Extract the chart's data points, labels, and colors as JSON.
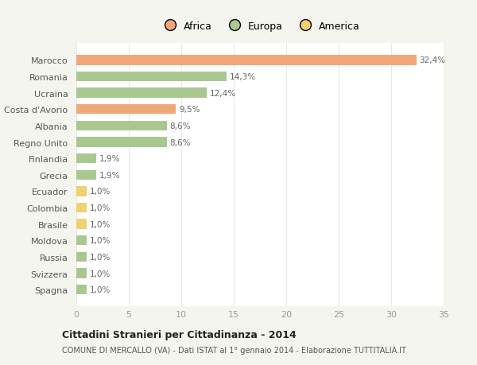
{
  "categories": [
    "Marocco",
    "Romania",
    "Ucraina",
    "Costa d'Avorio",
    "Albania",
    "Regno Unito",
    "Finlandia",
    "Grecia",
    "Ecuador",
    "Colombia",
    "Brasile",
    "Moldova",
    "Russia",
    "Svizzera",
    "Spagna"
  ],
  "values": [
    32.4,
    14.3,
    12.4,
    9.5,
    8.6,
    8.6,
    1.9,
    1.9,
    1.0,
    1.0,
    1.0,
    1.0,
    1.0,
    1.0,
    1.0
  ],
  "labels": [
    "32,4%",
    "14,3%",
    "12,4%",
    "9,5%",
    "8,6%",
    "8,6%",
    "1,9%",
    "1,9%",
    "1,0%",
    "1,0%",
    "1,0%",
    "1,0%",
    "1,0%",
    "1,0%",
    "1,0%"
  ],
  "colors": [
    "#f0a878",
    "#a8c890",
    "#a8c890",
    "#f0a878",
    "#a8c890",
    "#a8c890",
    "#a8c890",
    "#a8c890",
    "#f0d070",
    "#f0d070",
    "#f0d070",
    "#a8c890",
    "#a8c890",
    "#a8c890",
    "#a8c890"
  ],
  "legend_labels": [
    "Africa",
    "Europa",
    "America"
  ],
  "legend_colors": [
    "#f0a878",
    "#a8c890",
    "#f0d070"
  ],
  "title": "Cittadini Stranieri per Cittadinanza - 2014",
  "subtitle": "COMUNE DI MERCALLO (VA) - Dati ISTAT al 1° gennaio 2014 - Elaborazione TUTTITALIA.IT",
  "xlim": [
    0,
    35
  ],
  "xticks": [
    0,
    5,
    10,
    15,
    20,
    25,
    30,
    35
  ],
  "plot_bg": "#ffffff",
  "fig_bg": "#f5f5f0",
  "grid_color": "#e8e8e8",
  "bar_height": 0.6,
  "label_color": "#666666",
  "ytick_color": "#555555"
}
